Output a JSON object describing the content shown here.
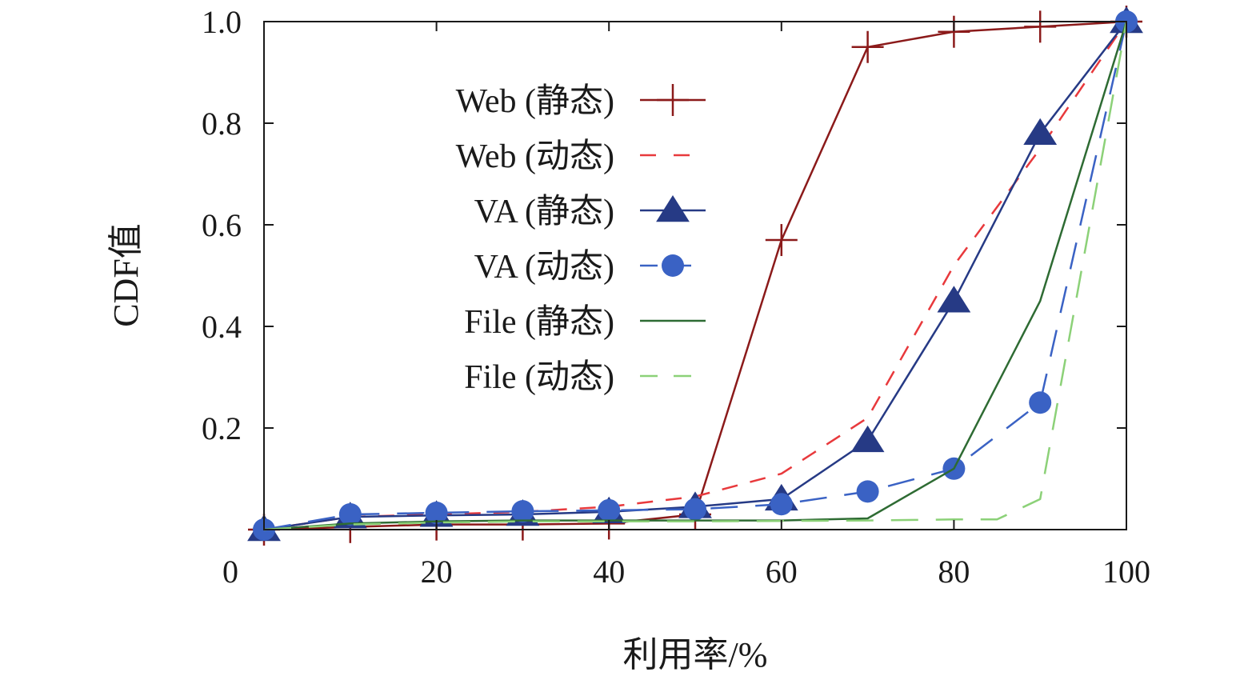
{
  "chart_data": {
    "type": "line",
    "title": "",
    "xlabel": "利用率/%",
    "ylabel": "CDF值",
    "xlim": [
      0,
      100
    ],
    "ylim": [
      0,
      1.0
    ],
    "x_ticks": [
      0,
      20,
      40,
      60,
      80,
      100
    ],
    "x_tick_labels": [
      "0",
      "20",
      "40",
      "60",
      "80",
      "100"
    ],
    "y_ticks": [
      0.2,
      0.4,
      0.6,
      0.8,
      1.0
    ],
    "y_tick_labels": [
      "0.2",
      "0.4",
      "0.6",
      "0.8",
      "1.0"
    ],
    "grid": false,
    "legend_position": "top-center",
    "series": [
      {
        "name": "Web (静态)",
        "color": "#8b1a1a",
        "style": "solid",
        "marker": "plus",
        "x": [
          0,
          10,
          20,
          30,
          40,
          50,
          60,
          70,
          80,
          90,
          100
        ],
        "y": [
          0,
          0.005,
          0.01,
          0.01,
          0.012,
          0.03,
          0.57,
          0.95,
          0.98,
          0.99,
          1.0
        ]
      },
      {
        "name": "Web (动态)",
        "color": "#e8393c",
        "style": "dashed",
        "marker": "none",
        "x": [
          0,
          10,
          20,
          30,
          40,
          50,
          60,
          70,
          80,
          90,
          100
        ],
        "y": [
          0,
          0.025,
          0.03,
          0.035,
          0.045,
          0.065,
          0.11,
          0.22,
          0.52,
          0.75,
          1.0
        ]
      },
      {
        "name": "VA (静态)",
        "color": "#263a85",
        "style": "solid",
        "marker": "triangle",
        "x": [
          0,
          10,
          20,
          30,
          40,
          50,
          60,
          70,
          80,
          90,
          100
        ],
        "y": [
          0,
          0.025,
          0.028,
          0.03,
          0.035,
          0.045,
          0.06,
          0.175,
          0.45,
          0.78,
          1.0
        ]
      },
      {
        "name": "VA (动态)",
        "color": "#3a62c4",
        "style": "dashed-long",
        "marker": "circle",
        "x": [
          0,
          10,
          20,
          30,
          40,
          50,
          60,
          70,
          80,
          90,
          100
        ],
        "y": [
          0,
          0.03,
          0.033,
          0.036,
          0.038,
          0.04,
          0.05,
          0.075,
          0.12,
          0.25,
          1.0
        ]
      },
      {
        "name": "File (静态)",
        "color": "#2e6b33",
        "style": "solid",
        "marker": "none",
        "x": [
          0,
          10,
          20,
          30,
          40,
          50,
          60,
          70,
          80,
          90,
          100
        ],
        "y": [
          0,
          0.012,
          0.016,
          0.018,
          0.018,
          0.018,
          0.018,
          0.022,
          0.12,
          0.45,
          1.0
        ]
      },
      {
        "name": "File (动态)",
        "color": "#8cd178",
        "style": "dashed-long",
        "marker": "none",
        "x": [
          0,
          10,
          20,
          30,
          40,
          50,
          60,
          70,
          80,
          85,
          90,
          100
        ],
        "y": [
          0,
          0.01,
          0.014,
          0.016,
          0.016,
          0.016,
          0.017,
          0.018,
          0.02,
          0.02,
          0.06,
          1.0
        ]
      }
    ]
  }
}
